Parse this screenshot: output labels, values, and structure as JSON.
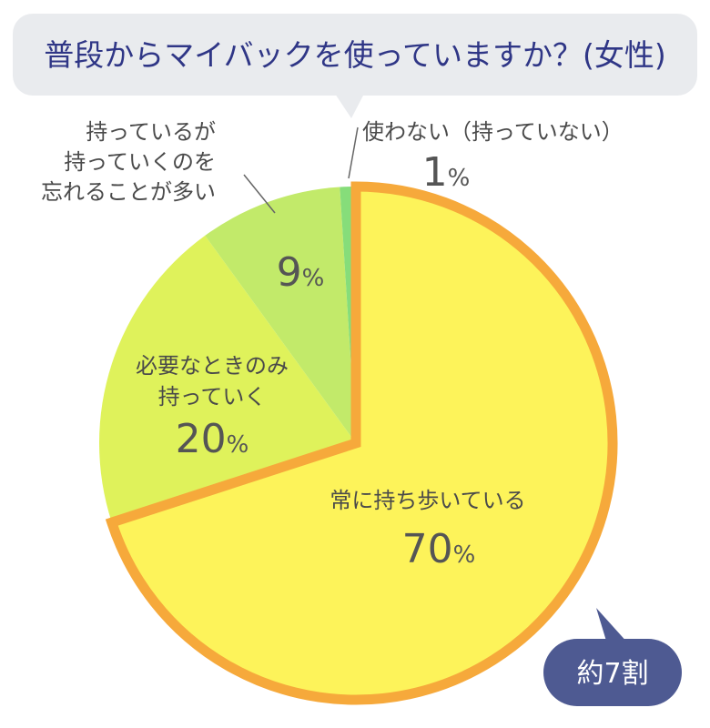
{
  "title": "普段からマイバックを使っていますか？(女性)",
  "badge": "約7割",
  "chart_data": {
    "type": "pie",
    "title": "普段からマイバックを使っていますか？(女性)",
    "unit": "%",
    "start_angle": "12 o'clock, clockwise",
    "slices": [
      {
        "label": "常に持ち歩いている",
        "value": 70,
        "color": "#fdf35a",
        "highlight": true
      },
      {
        "label": "必要なときのみ持っていく",
        "value": 20,
        "color": "#dff25b"
      },
      {
        "label": "持っているが持っていくのを忘れることが多い",
        "value": 9,
        "color": "#c2ea6a"
      },
      {
        "label": "使わない（持っていない）",
        "value": 1,
        "color": "#86dd7a"
      }
    ]
  },
  "labels": {
    "always": "常に持ち歩いている",
    "needed_line1": "必要なときのみ",
    "needed_line2": "持っていく",
    "forget_line1": "持っているが",
    "forget_line2": "持っていくのを",
    "forget_line3": "忘れることが多い",
    "none": "使わない（持っていない）"
  },
  "percent_sign": "%",
  "colors": {
    "title_bubble": "#e9ebee",
    "title_text": "#2f3686",
    "highlight_border": "#f6a93b",
    "badge": "#4e5a92",
    "leader_line": "#666666"
  }
}
